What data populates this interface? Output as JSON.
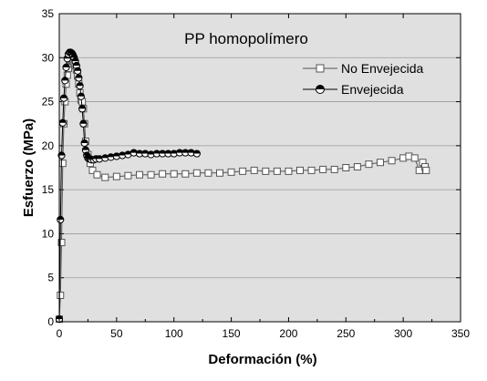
{
  "chart_data": {
    "type": "line",
    "title": "PP homopolímero",
    "xlabel": "Deformación (%)",
    "ylabel": "Esfuerzo (MPa)",
    "xlim": [
      0,
      350
    ],
    "ylim": [
      0,
      35
    ],
    "xticks": [
      0,
      50,
      100,
      150,
      200,
      250,
      300,
      350
    ],
    "yticks": [
      0,
      5,
      10,
      15,
      20,
      25,
      30,
      35
    ],
    "grid": "horizontal",
    "background_color": "#e0e0e0",
    "legend_position": "upper-right",
    "series": [
      {
        "name": "No Envejecida",
        "marker": "open-square",
        "color": "#555555",
        "x": [
          0,
          1,
          2,
          3,
          4,
          5,
          6,
          7,
          8,
          9,
          10,
          11,
          12,
          13,
          14,
          15,
          16,
          17,
          18,
          19,
          20,
          21,
          22,
          23,
          25,
          27,
          29,
          33,
          40,
          50,
          60,
          70,
          80,
          90,
          100,
          110,
          120,
          130,
          140,
          150,
          160,
          170,
          180,
          190,
          200,
          210,
          220,
          230,
          240,
          250,
          260,
          270,
          280,
          290,
          300,
          305,
          310,
          314,
          317,
          319,
          320
        ],
        "y": [
          0.3,
          3,
          9,
          18,
          22.5,
          25,
          27,
          28,
          28.8,
          29.3,
          29.6,
          29.7,
          29.6,
          29.4,
          29.1,
          28.6,
          27.9,
          27,
          26,
          25.2,
          25,
          24.2,
          22.5,
          20.5,
          19,
          18,
          17.2,
          16.7,
          16.4,
          16.5,
          16.6,
          16.7,
          16.7,
          16.8,
          16.8,
          16.8,
          16.9,
          16.9,
          16.9,
          17,
          17.1,
          17.2,
          17.1,
          17.1,
          17.1,
          17.2,
          17.2,
          17.3,
          17.3,
          17.5,
          17.6,
          17.9,
          18.1,
          18.3,
          18.6,
          18.8,
          18.6,
          17.2,
          18.1,
          17.6,
          17.2
        ]
      },
      {
        "name": "Envejecida",
        "marker": "half-filled-circle",
        "color": "#000000",
        "x": [
          0,
          1,
          2,
          3,
          4,
          5,
          6,
          7,
          8,
          9,
          10,
          11,
          12,
          13,
          14,
          15,
          16,
          17,
          18,
          19,
          20,
          21,
          22,
          23,
          24,
          25,
          26,
          27,
          28,
          30,
          32,
          35,
          40,
          45,
          50,
          55,
          60,
          65,
          70,
          75,
          80,
          85,
          90,
          95,
          100,
          105,
          110,
          115,
          120
        ],
        "y": [
          0.3,
          11.6,
          18.9,
          22.6,
          25.4,
          27.4,
          28.9,
          29.9,
          30.4,
          30.6,
          30.6,
          30.5,
          30.3,
          30,
          29.6,
          29.1,
          28.5,
          27.7,
          26.8,
          25.6,
          24.2,
          22.5,
          20.3,
          19.5,
          18.9,
          18.6,
          18.5,
          18.5,
          18.4,
          18.4,
          18.5,
          18.5,
          18.6,
          18.7,
          18.8,
          18.9,
          19,
          19.2,
          19.1,
          19.1,
          19,
          19.1,
          19.1,
          19.1,
          19.1,
          19.2,
          19.2,
          19.2,
          19.1
        ]
      }
    ]
  }
}
